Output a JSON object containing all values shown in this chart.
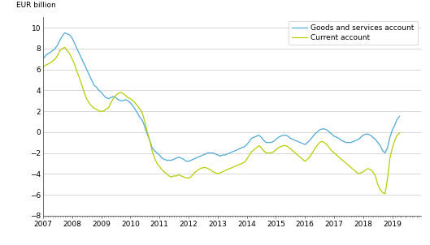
{
  "title": "",
  "ylabel": "EUR billion",
  "ylim": [
    -8,
    11
  ],
  "yticks": [
    -8,
    -6,
    -4,
    -2,
    0,
    2,
    4,
    6,
    8,
    10
  ],
  "goods_color": "#4fa8d5",
  "current_color": "#b8cc00",
  "legend_goods": "Goods and services account",
  "legend_current": "Current account",
  "background_color": "#ffffff",
  "grid_color": "#c8c8c8",
  "goods_services": [
    7.0,
    7.3,
    7.5,
    7.6,
    7.8,
    8.0,
    8.3,
    8.8,
    9.2,
    9.5,
    9.4,
    9.3,
    9.0,
    8.5,
    8.0,
    7.5,
    7.0,
    6.5,
    6.0,
    5.5,
    5.0,
    4.5,
    4.3,
    4.0,
    3.8,
    3.5,
    3.3,
    3.2,
    3.3,
    3.4,
    3.3,
    3.1,
    3.0,
    3.0,
    3.1,
    3.0,
    2.8,
    2.5,
    2.2,
    1.8,
    1.4,
    1.1,
    0.5,
    -0.2,
    -0.8,
    -1.5,
    -1.8,
    -2.0,
    -2.2,
    -2.5,
    -2.6,
    -2.7,
    -2.7,
    -2.7,
    -2.6,
    -2.5,
    -2.4,
    -2.5,
    -2.6,
    -2.8,
    -2.8,
    -2.7,
    -2.6,
    -2.5,
    -2.4,
    -2.3,
    -2.2,
    -2.1,
    -2.0,
    -2.0,
    -2.0,
    -2.1,
    -2.2,
    -2.3,
    -2.2,
    -2.2,
    -2.1,
    -2.0,
    -1.9,
    -1.8,
    -1.7,
    -1.6,
    -1.5,
    -1.4,
    -1.2,
    -0.9,
    -0.6,
    -0.5,
    -0.4,
    -0.3,
    -0.5,
    -0.8,
    -1.0,
    -1.0,
    -1.0,
    -0.9,
    -0.7,
    -0.5,
    -0.4,
    -0.3,
    -0.3,
    -0.4,
    -0.6,
    -0.7,
    -0.8,
    -0.9,
    -1.0,
    -1.1,
    -1.2,
    -1.0,
    -0.8,
    -0.5,
    -0.2,
    0.0,
    0.2,
    0.3,
    0.3,
    0.2,
    0.0,
    -0.2,
    -0.4,
    -0.5,
    -0.6,
    -0.8,
    -0.9,
    -1.0,
    -1.0,
    -1.0,
    -0.9,
    -0.8,
    -0.7,
    -0.5,
    -0.3,
    -0.2,
    -0.2,
    -0.3,
    -0.5,
    -0.7,
    -1.0,
    -1.3,
    -1.8,
    -2.0,
    -1.5,
    -0.5,
    0.2,
    0.7,
    1.2,
    1.5
  ],
  "current_account": [
    6.2,
    6.4,
    6.5,
    6.6,
    6.8,
    7.0,
    7.3,
    7.8,
    8.0,
    8.1,
    7.8,
    7.5,
    7.0,
    6.5,
    5.8,
    5.2,
    4.5,
    3.8,
    3.2,
    2.8,
    2.5,
    2.3,
    2.2,
    2.0,
    2.0,
    2.0,
    2.2,
    2.3,
    2.8,
    3.2,
    3.5,
    3.7,
    3.8,
    3.7,
    3.5,
    3.3,
    3.2,
    3.0,
    2.8,
    2.5,
    2.2,
    1.8,
    1.0,
    0.0,
    -0.8,
    -1.8,
    -2.5,
    -3.0,
    -3.3,
    -3.6,
    -3.8,
    -4.0,
    -4.2,
    -4.3,
    -4.2,
    -4.2,
    -4.1,
    -4.2,
    -4.3,
    -4.4,
    -4.4,
    -4.3,
    -4.0,
    -3.8,
    -3.6,
    -3.5,
    -3.4,
    -3.4,
    -3.5,
    -3.6,
    -3.8,
    -3.9,
    -4.0,
    -3.9,
    -3.8,
    -3.7,
    -3.6,
    -3.5,
    -3.4,
    -3.3,
    -3.2,
    -3.1,
    -3.0,
    -2.9,
    -2.6,
    -2.2,
    -1.9,
    -1.7,
    -1.5,
    -1.3,
    -1.5,
    -1.8,
    -2.0,
    -2.0,
    -2.0,
    -1.9,
    -1.7,
    -1.5,
    -1.4,
    -1.3,
    -1.3,
    -1.4,
    -1.6,
    -1.8,
    -2.0,
    -2.2,
    -2.4,
    -2.6,
    -2.8,
    -2.6,
    -2.4,
    -2.0,
    -1.6,
    -1.3,
    -1.0,
    -0.9,
    -1.0,
    -1.2,
    -1.5,
    -1.8,
    -2.0,
    -2.2,
    -2.4,
    -2.6,
    -2.8,
    -3.0,
    -3.2,
    -3.4,
    -3.6,
    -3.8,
    -4.0,
    -3.9,
    -3.8,
    -3.6,
    -3.5,
    -3.6,
    -3.8,
    -4.2,
    -5.0,
    -5.5,
    -5.8,
    -5.9,
    -4.5,
    -2.5,
    -1.5,
    -0.8,
    -0.3,
    -0.1
  ]
}
